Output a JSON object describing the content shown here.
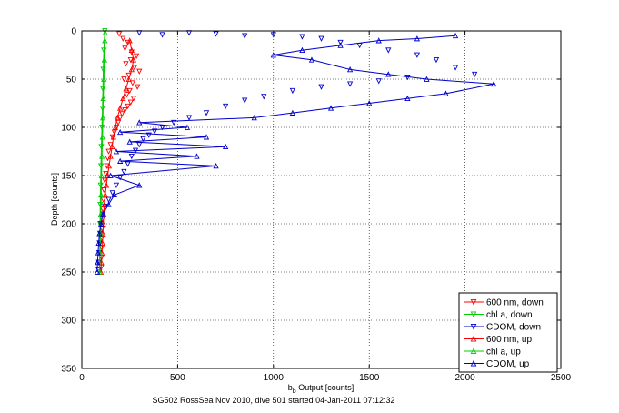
{
  "chart_data": {
    "type": "scatter",
    "xlabel_main": "b",
    "xlabel_sub": "b",
    "xlabel_rest": " Output [counts]",
    "ylabel": "Depth [counts]",
    "caption": "SG502 RossSea Nov 2010, dive 501 started 04-Jan-2011 07:12:32",
    "xlim": [
      0,
      2500
    ],
    "ylim": [
      0,
      350
    ],
    "y_reversed": true,
    "grid": true,
    "legend_position": "bottom-right",
    "x_ticks": [
      "0",
      "500",
      "1000",
      "1500",
      "2000",
      "2500"
    ],
    "y_ticks": [
      "0",
      "50",
      "100",
      "150",
      "200",
      "250",
      "300",
      "350"
    ],
    "series": [
      {
        "name": "600 nm, down",
        "color": "#ff0000",
        "marker": "triangle-down",
        "line": false,
        "points": [
          [
            195,
            3
          ],
          [
            215,
            8
          ],
          [
            240,
            12
          ],
          [
            225,
            18
          ],
          [
            260,
            22
          ],
          [
            285,
            26
          ],
          [
            255,
            30
          ],
          [
            230,
            34
          ],
          [
            275,
            38
          ],
          [
            300,
            42
          ],
          [
            245,
            46
          ],
          [
            220,
            50
          ],
          [
            265,
            54
          ],
          [
            290,
            58
          ],
          [
            250,
            62
          ],
          [
            235,
            66
          ],
          [
            270,
            70
          ],
          [
            255,
            74
          ],
          [
            240,
            78
          ],
          [
            225,
            82
          ],
          [
            210,
            86
          ],
          [
            200,
            90
          ],
          [
            190,
            95
          ],
          [
            180,
            100
          ],
          [
            170,
            105
          ],
          [
            160,
            110
          ],
          [
            150,
            118
          ],
          [
            140,
            125
          ],
          [
            135,
            132
          ],
          [
            130,
            140
          ],
          [
            125,
            148
          ],
          [
            120,
            155
          ],
          [
            115,
            165
          ],
          [
            112,
            175
          ],
          [
            110,
            185
          ],
          [
            108,
            195
          ],
          [
            106,
            205
          ],
          [
            105,
            215
          ],
          [
            104,
            225
          ],
          [
            103,
            235
          ],
          [
            102,
            245
          ]
        ]
      },
      {
        "name": "chl a, down",
        "color": "#00cc00",
        "marker": "triangle-down",
        "line": true,
        "points": [
          [
            120,
            0
          ],
          [
            115,
            20
          ],
          [
            112,
            40
          ],
          [
            110,
            60
          ],
          [
            108,
            80
          ],
          [
            105,
            100
          ],
          [
            102,
            120
          ],
          [
            100,
            140
          ],
          [
            98,
            160
          ],
          [
            96,
            180
          ],
          [
            95,
            200
          ],
          [
            94,
            220
          ],
          [
            93,
            240
          ],
          [
            92,
            250
          ]
        ]
      },
      {
        "name": "CDOM, down",
        "color": "#0000cc",
        "marker": "triangle-down",
        "line": false,
        "points": [
          [
            300,
            2
          ],
          [
            420,
            4
          ],
          [
            560,
            2
          ],
          [
            700,
            3
          ],
          [
            850,
            5
          ],
          [
            1000,
            4
          ],
          [
            1150,
            6
          ],
          [
            1250,
            8
          ],
          [
            1350,
            12
          ],
          [
            1450,
            15
          ],
          [
            1600,
            20
          ],
          [
            1750,
            25
          ],
          [
            1850,
            30
          ],
          [
            1950,
            38
          ],
          [
            2050,
            45
          ],
          [
            1700,
            48
          ],
          [
            1550,
            52
          ],
          [
            1400,
            55
          ],
          [
            1250,
            58
          ],
          [
            1100,
            62
          ],
          [
            950,
            68
          ],
          [
            850,
            72
          ],
          [
            750,
            78
          ],
          [
            650,
            85
          ],
          [
            560,
            90
          ],
          [
            480,
            95
          ],
          [
            420,
            100
          ],
          [
            380,
            104
          ],
          [
            350,
            108
          ],
          [
            320,
            112
          ],
          [
            300,
            118
          ],
          [
            280,
            124
          ],
          [
            260,
            130
          ],
          [
            240,
            138
          ],
          [
            220,
            146
          ],
          [
            200,
            152
          ],
          [
            180,
            160
          ],
          [
            160,
            168
          ],
          [
            140,
            175
          ],
          [
            120,
            182
          ],
          [
            110,
            190
          ],
          [
            100,
            200
          ],
          [
            95,
            210
          ],
          [
            92,
            220
          ],
          [
            90,
            230
          ],
          [
            88,
            240
          ],
          [
            87,
            248
          ]
        ]
      },
      {
        "name": "600 nm, up",
        "color": "#ff0000",
        "marker": "triangle-up",
        "line": true,
        "points": [
          [
            100,
            250
          ],
          [
            102,
            240
          ],
          [
            105,
            230
          ],
          [
            108,
            220
          ],
          [
            110,
            210
          ],
          [
            112,
            200
          ],
          [
            115,
            190
          ],
          [
            118,
            180
          ],
          [
            122,
            170
          ],
          [
            128,
            160
          ],
          [
            135,
            150
          ],
          [
            142,
            140
          ],
          [
            150,
            130
          ],
          [
            158,
            120
          ],
          [
            165,
            110
          ],
          [
            175,
            100
          ],
          [
            185,
            90
          ],
          [
            200,
            80
          ],
          [
            215,
            70
          ],
          [
            230,
            60
          ],
          [
            245,
            50
          ],
          [
            260,
            40
          ],
          [
            270,
            30
          ],
          [
            260,
            20
          ],
          [
            250,
            10
          ]
        ]
      },
      {
        "name": "chl a, up",
        "color": "#00cc00",
        "marker": "triangle-up",
        "line": true,
        "points": [
          [
            93,
            250
          ],
          [
            95,
            230
          ],
          [
            97,
            210
          ],
          [
            99,
            190
          ],
          [
            101,
            170
          ],
          [
            103,
            150
          ],
          [
            105,
            130
          ],
          [
            108,
            110
          ],
          [
            110,
            90
          ],
          [
            112,
            70
          ],
          [
            115,
            50
          ],
          [
            118,
            30
          ],
          [
            120,
            10
          ],
          [
            122,
            2
          ]
        ]
      },
      {
        "name": "CDOM, up",
        "color": "#0000cc",
        "marker": "triangle-up",
        "line": true,
        "points": [
          [
            80,
            250
          ],
          [
            82,
            240
          ],
          [
            85,
            230
          ],
          [
            88,
            220
          ],
          [
            92,
            210
          ],
          [
            100,
            200
          ],
          [
            110,
            190
          ],
          [
            140,
            180
          ],
          [
            170,
            170
          ],
          [
            300,
            160
          ],
          [
            150,
            150
          ],
          [
            700,
            140
          ],
          [
            200,
            135
          ],
          [
            600,
            130
          ],
          [
            180,
            125
          ],
          [
            750,
            120
          ],
          [
            250,
            115
          ],
          [
            650,
            110
          ],
          [
            200,
            105
          ],
          [
            550,
            100
          ],
          [
            300,
            95
          ],
          [
            900,
            90
          ],
          [
            1100,
            85
          ],
          [
            1300,
            80
          ],
          [
            1500,
            75
          ],
          [
            1700,
            70
          ],
          [
            1900,
            65
          ],
          [
            2150,
            55
          ],
          [
            1800,
            50
          ],
          [
            1600,
            45
          ],
          [
            1400,
            40
          ],
          [
            1200,
            30
          ],
          [
            1000,
            25
          ],
          [
            1150,
            20
          ],
          [
            1350,
            15
          ],
          [
            1550,
            10
          ],
          [
            1750,
            8
          ],
          [
            1950,
            5
          ]
        ]
      }
    ]
  }
}
